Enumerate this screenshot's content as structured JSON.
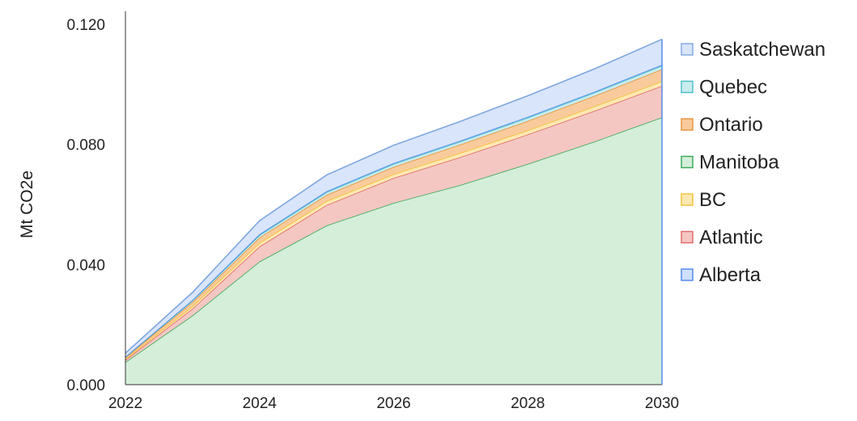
{
  "chart_data": {
    "type": "area",
    "stacked": true,
    "title": "",
    "xlabel": "",
    "ylabel": "Mt CO2e",
    "x": [
      2022,
      2023,
      2024,
      2025,
      2026,
      2027,
      2028,
      2029,
      2030
    ],
    "xticks": [
      "2022",
      "2024",
      "2026",
      "2028",
      "2030"
    ],
    "yticks": [
      "0.000",
      "0.040",
      "0.080",
      "0.120"
    ],
    "xlim": [
      2022,
      2030
    ],
    "ylim": [
      0,
      0.12
    ],
    "grid": false,
    "legend_position": "right",
    "series": [
      {
        "name": "Manitoba",
        "color": "#34a853",
        "fill": "#d4eed9",
        "values": [
          0.0075,
          0.023,
          0.041,
          0.053,
          0.0605,
          0.0665,
          0.0735,
          0.081,
          0.089
        ]
      },
      {
        "name": "Atlantic",
        "color": "#e06666",
        "fill": "#f4c7c3",
        "values": [
          0.0007,
          0.0023,
          0.005,
          0.0068,
          0.0083,
          0.0093,
          0.0098,
          0.0102,
          0.0105
        ]
      },
      {
        "name": "BC",
        "color": "#f1c232",
        "fill": "#fce8b2",
        "values": [
          0.0003,
          0.0008,
          0.0012,
          0.0013,
          0.0013,
          0.0014,
          0.0014,
          0.0015,
          0.0015
        ]
      },
      {
        "name": "Ontario",
        "color": "#e69138",
        "fill": "#f9cb9c",
        "values": [
          0.0005,
          0.0014,
          0.0018,
          0.0021,
          0.0024,
          0.0028,
          0.0031,
          0.0035,
          0.004
        ]
      },
      {
        "name": "Quebec",
        "color": "#46bdc6",
        "fill": "#c9ecee",
        "values": [
          0.0002,
          0.0005,
          0.0008,
          0.0009,
          0.001,
          0.001,
          0.0011,
          0.0011,
          0.0012
        ]
      },
      {
        "name": "Alberta",
        "color": "#4a86e8",
        "fill": "#cfe0fc",
        "values": [
          0.0001,
          0.0002,
          0.0003,
          0.0003,
          0.0003,
          0.0003,
          0.0003,
          0.0003,
          0.0003
        ]
      },
      {
        "name": "Saskatchewan",
        "color": "#7ea6e0",
        "fill": "#d9e5fb",
        "values": [
          0.0012,
          0.0025,
          0.0045,
          0.0054,
          0.0059,
          0.0064,
          0.007,
          0.0076,
          0.0085
        ]
      }
    ],
    "legend_order": [
      "Saskatchewan",
      "Quebec",
      "Ontario",
      "Manitoba",
      "BC",
      "Atlantic",
      "Alberta"
    ]
  }
}
